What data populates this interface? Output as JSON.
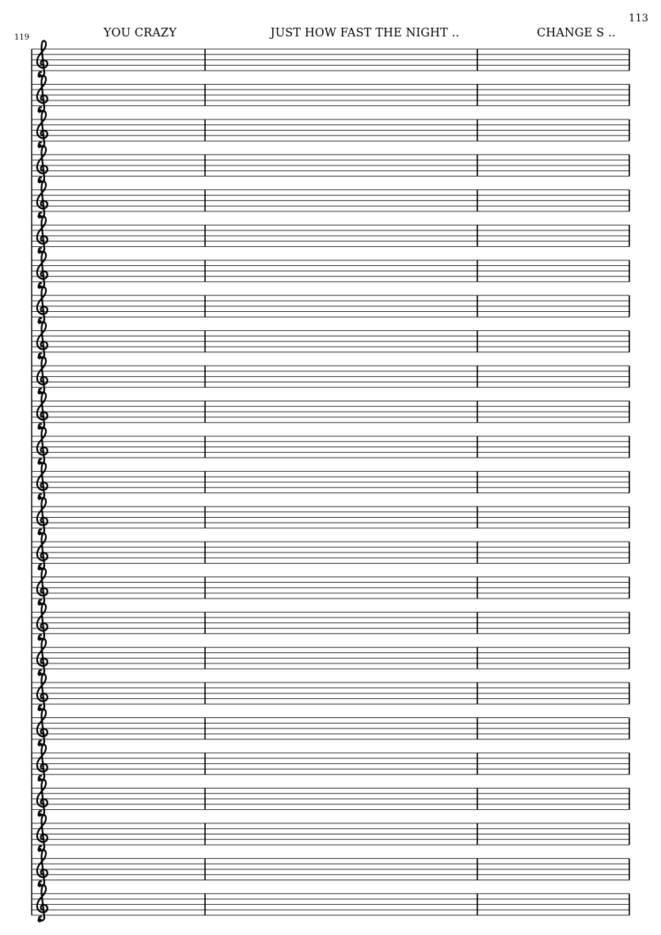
{
  "page_number": "113",
  "measure_number": "119",
  "rehearsal_marks": [
    "YOU CRAZY",
    "JUST HOW FAST THE NIGHT ..",
    "CHANGE S .."
  ],
  "staff_count": 25,
  "clef": "treble-clef-icon",
  "measures_per_staff": 3
}
